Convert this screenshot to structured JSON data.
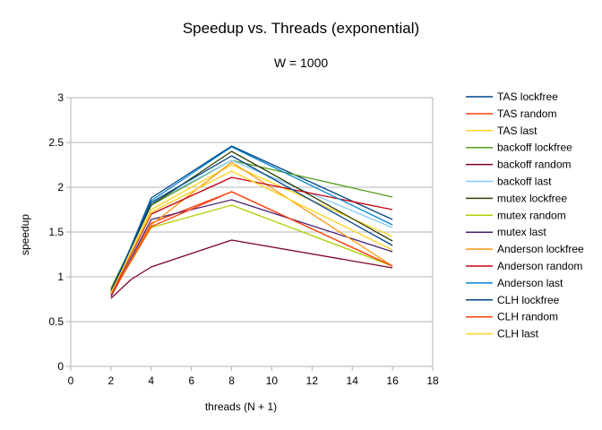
{
  "chart_data": {
    "type": "line",
    "title": "Speedup vs. Threads (exponential)",
    "subtitle": "W = 1000",
    "xlabel": "threads (N + 1)",
    "ylabel": "speedup",
    "xlim": [
      0,
      18
    ],
    "ylim": [
      0,
      3
    ],
    "xticks": [
      "0",
      "2",
      "4",
      "6",
      "8",
      "10",
      "12",
      "14",
      "16",
      "18"
    ],
    "yticks": [
      "0",
      "0.5",
      "1",
      "1.5",
      "2",
      "2.5",
      "3"
    ],
    "grid": "horizontal",
    "legend_position": "right",
    "series": [
      {
        "name": "TAS lockfree",
        "color": "#004586",
        "x": [
          2,
          4,
          8,
          16
        ],
        "y": [
          0.8,
          1.88,
          2.46,
          1.64
        ]
      },
      {
        "name": "TAS random",
        "color": "#ff420e",
        "x": [
          2,
          4,
          8,
          16
        ],
        "y": [
          0.78,
          1.6,
          1.95,
          1.12
        ]
      },
      {
        "name": "TAS last",
        "color": "#ffd320",
        "x": [
          2,
          4,
          8,
          16
        ],
        "y": [
          0.82,
          1.75,
          2.25,
          1.45
        ]
      },
      {
        "name": "backoff lockfree",
        "color": "#579d1c",
        "x": [
          2,
          4,
          8,
          16
        ],
        "y": [
          0.87,
          1.8,
          2.3,
          1.89
        ]
      },
      {
        "name": "backoff random",
        "color": "#7e0021",
        "x": [
          2,
          3,
          4,
          8,
          16
        ],
        "y": [
          0.76,
          0.97,
          1.11,
          1.41,
          1.1
        ]
      },
      {
        "name": "backoff last",
        "color": "#83caff",
        "x": [
          2,
          4,
          8,
          16
        ],
        "y": [
          0.85,
          1.82,
          2.3,
          1.55
        ]
      },
      {
        "name": "mutex lockfree",
        "color": "#314004",
        "x": [
          2,
          4,
          8,
          16
        ],
        "y": [
          0.85,
          1.8,
          2.4,
          1.4
        ]
      },
      {
        "name": "mutex random",
        "color": "#aecf00",
        "x": [
          2,
          4,
          8,
          16
        ],
        "y": [
          0.8,
          1.55,
          1.8,
          1.12
        ]
      },
      {
        "name": "mutex last",
        "color": "#4b1f6f",
        "x": [
          2,
          4,
          8,
          16
        ],
        "y": [
          0.78,
          1.64,
          1.86,
          1.28
        ]
      },
      {
        "name": "Anderson lockfree",
        "color": "#ff950e",
        "x": [
          2,
          4,
          8,
          16
        ],
        "y": [
          0.8,
          1.58,
          2.28,
          1.12
        ]
      },
      {
        "name": "Anderson random",
        "color": "#c5000b",
        "x": [
          2,
          4,
          8,
          16
        ],
        "y": [
          0.8,
          1.7,
          2.11,
          1.75
        ]
      },
      {
        "name": "Anderson last",
        "color": "#0084d1",
        "x": [
          2,
          4,
          8,
          16
        ],
        "y": [
          0.82,
          1.85,
          2.45,
          1.58
        ]
      },
      {
        "name": "CLH lockfree",
        "color": "#004586",
        "x": [
          2,
          4,
          8,
          16
        ],
        "y": [
          0.83,
          1.83,
          2.35,
          1.35
        ]
      },
      {
        "name": "CLH random",
        "color": "#ff420e",
        "x": [
          2,
          4,
          8,
          16
        ],
        "y": [
          0.8,
          1.56,
          1.95,
          1.12
        ]
      },
      {
        "name": "CLH last",
        "color": "#ffd320",
        "x": [
          2,
          4,
          8,
          16
        ],
        "y": [
          0.82,
          1.72,
          2.18,
          1.3
        ]
      }
    ]
  }
}
